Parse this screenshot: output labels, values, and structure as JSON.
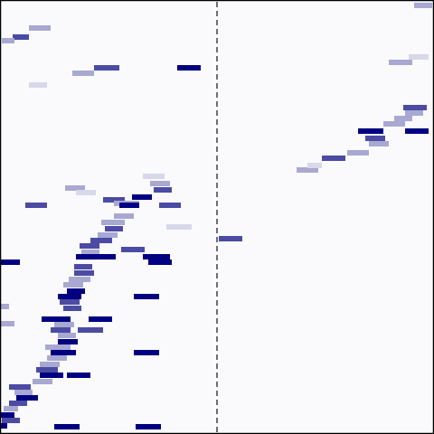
{
  "colors": {
    "background": "#fafafc",
    "border": "#000000",
    "divider": "#111111",
    "segment_dark": "#000080",
    "segment_mid": "#4b4ba3",
    "segment_light": "#a8a8d2",
    "segment_faint": "#d8d8ea"
  },
  "piano_roll": {
    "divider_style": "dashed",
    "segments": [
      {
        "pitch_row": 0,
        "onset": 0.01,
        "duration": 0.03,
        "velocity": 0.9
      },
      {
        "pitch_row": 1,
        "onset": 0.0,
        "duration": 0.04,
        "velocity": 0.8
      },
      {
        "pitch_row": 2,
        "onset": 0.0,
        "duration": 0.03,
        "velocity": 0.6
      },
      {
        "pitch_row": 3,
        "onset": 0.01,
        "duration": 0.04,
        "velocity": 0.5
      },
      {
        "pitch_row": 4,
        "onset": 0.03,
        "duration": 0.04,
        "velocity": 0.4
      },
      {
        "pitch_row": 5,
        "onset": 0.06,
        "duration": 0.05,
        "velocity": 0.7
      },
      {
        "pitch_row": 6,
        "onset": 0.08,
        "duration": 0.05,
        "velocity": 0.5
      },
      {
        "pitch_row": 7,
        "onset": 0.11,
        "duration": 0.06,
        "velocity": 0.9
      },
      {
        "pitch_row": 8,
        "onset": 0.13,
        "duration": 0.05,
        "velocity": 0.6
      },
      {
        "pitch_row": 9,
        "onset": 0.15,
        "duration": 0.04,
        "velocity": 0.5
      },
      {
        "pitch_row": 10,
        "onset": 0.17,
        "duration": 0.05,
        "velocity": 0.8
      },
      {
        "pitch_row": 11,
        "onset": 0.16,
        "duration": 0.03,
        "velocity": 0.6
      }
    ]
  }
}
